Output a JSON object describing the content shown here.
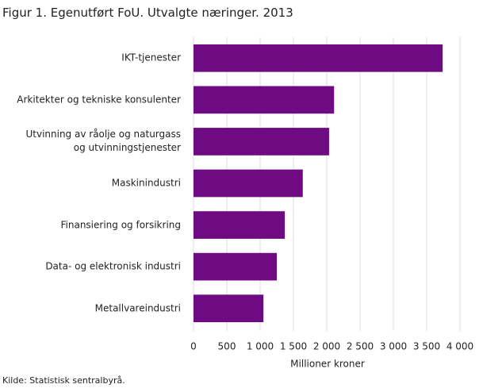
{
  "chart_data": {
    "type": "barh",
    "title": "Figur 1. Egenutført FoU. Utvalgte næringer. 2013",
    "categories": [
      "IKT-tjenester",
      "Arkitekter og tekniske konsulenter",
      "Utvinning av råolje og naturgass\nog utvinningstjenester",
      "Maskinindustri",
      "Finansiering og forsikring",
      "Data- og elektronisk industri",
      "Metallvareindustri"
    ],
    "values": [
      3740,
      2110,
      2035,
      1640,
      1370,
      1250,
      1050
    ],
    "color": "#6e0a82",
    "xlim": [
      0,
      4000
    ],
    "xticks": [
      0,
      500,
      {
        "value": 1000,
        "label": "1 000"
      },
      {
        "value": 1500,
        "label": "1 500"
      },
      {
        "value": 2000,
        "label": "2 000"
      },
      {
        "value": 2500,
        "label": "2 500"
      },
      {
        "value": 3000,
        "label": "3 000"
      },
      {
        "value": 3500,
        "label": "3 500"
      },
      {
        "value": 4000,
        "label": "4 000"
      }
    ],
    "x_label": "Millioner kroner",
    "grid": true,
    "source": "Kilde: Statistisk sentralbyrå."
  }
}
